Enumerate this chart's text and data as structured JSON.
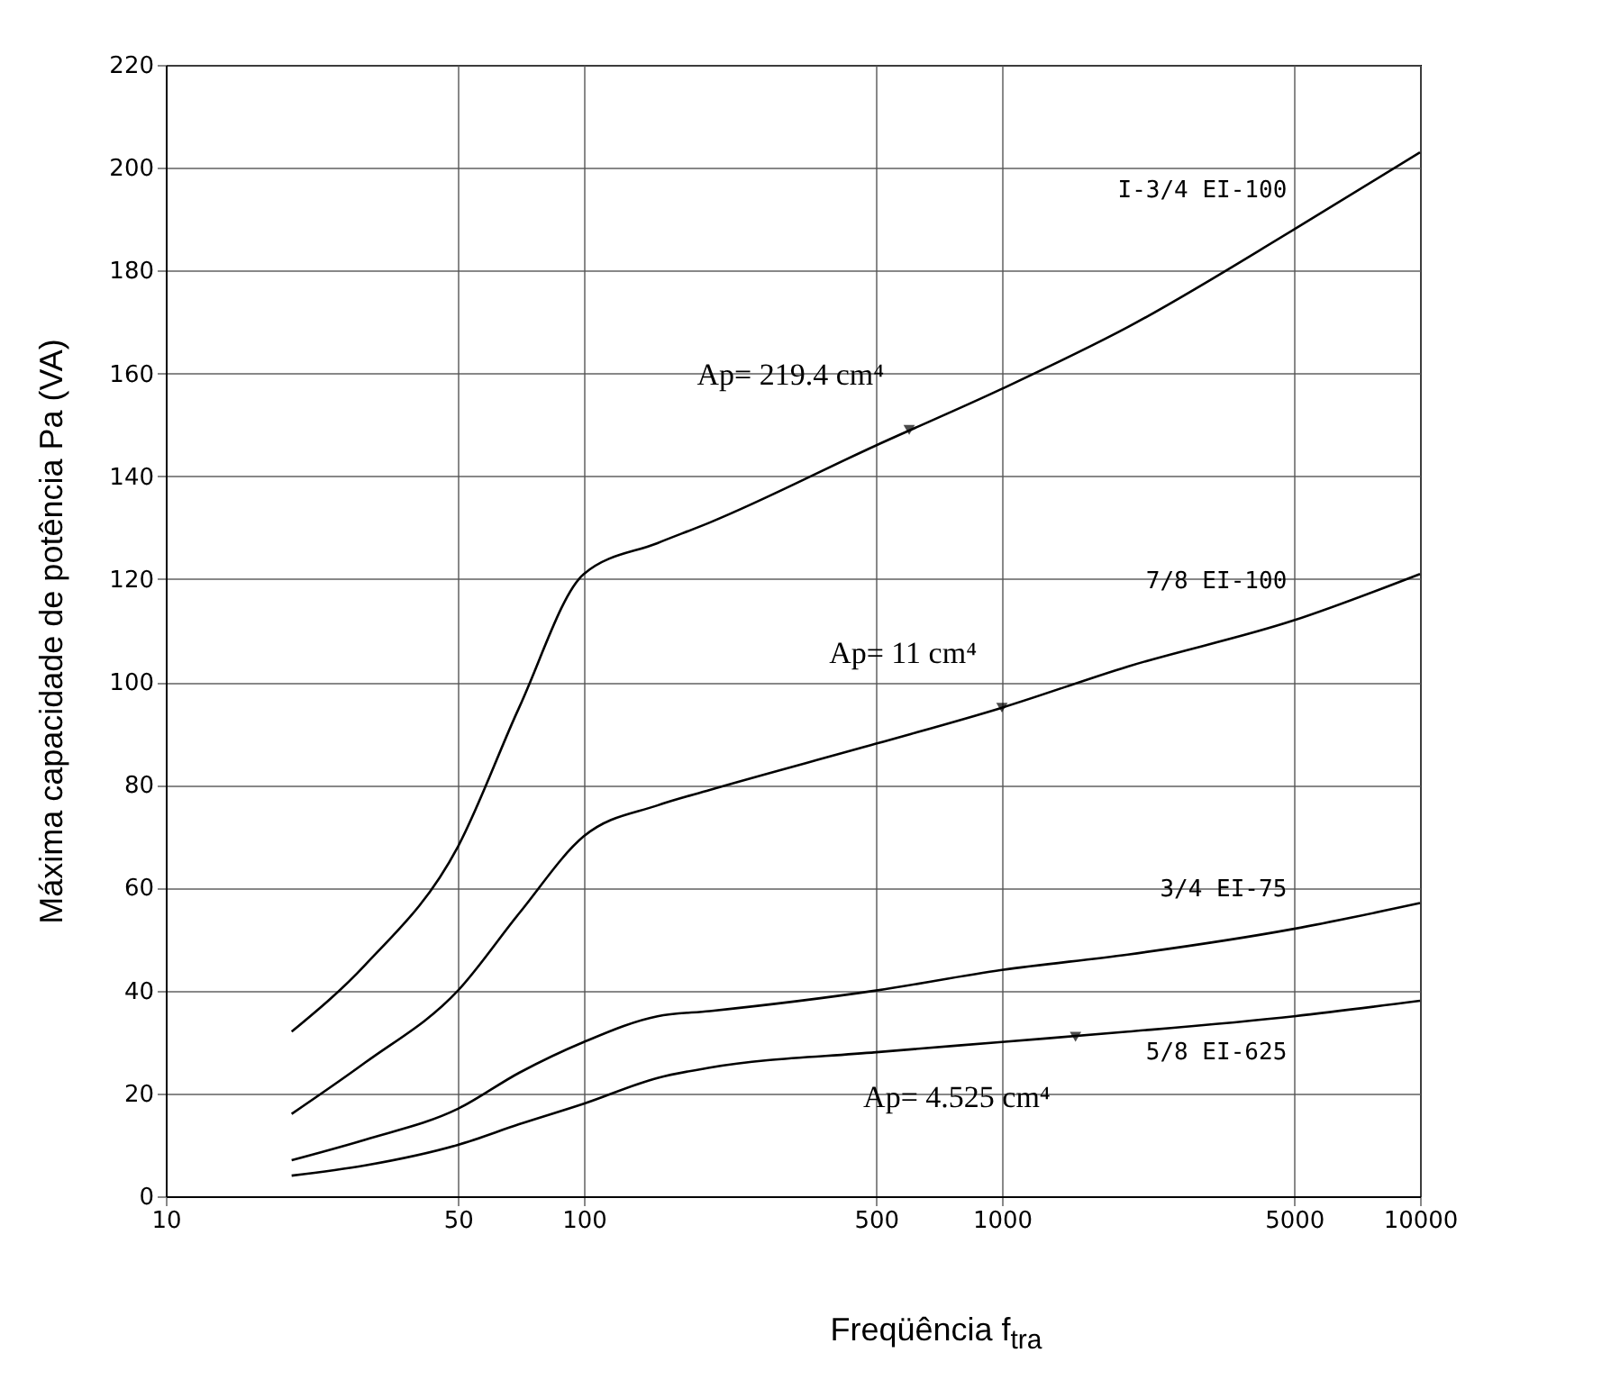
{
  "chart_data": {
    "type": "line",
    "xlabel": "Freqüência f$_{tra}$",
    "ylabel": "Máxima capacidade de potência Pa (VA)",
    "log": "x",
    "xlim": [
      10,
      10000
    ],
    "xticks": [
      10,
      50,
      100,
      500,
      1000,
      5000,
      10000
    ],
    "ylim": [
      0,
      220
    ],
    "yticks": [
      0,
      20,
      40,
      60,
      80,
      100,
      120,
      140,
      160,
      180,
      200,
      220
    ],
    "grid": true,
    "legend": false,
    "marker": "none",
    "line_style": "solid",
    "x": [
      20,
      30,
      50,
      70,
      100,
      150,
      200,
      500,
      1000,
      2000,
      5000,
      10000
    ],
    "series": [
      {
        "name": "I-3/4  EI-100",
        "color": "#000000",
        "values": [
          32,
          45,
          68,
          95,
          121,
          127,
          131,
          146,
          157,
          169,
          188,
          203
        ]
      },
      {
        "name": "7/8  EI-100",
        "color": "#000000",
        "values": [
          16,
          26,
          40,
          55,
          70,
          76,
          79,
          88,
          95,
          103,
          112,
          121
        ]
      },
      {
        "name": "3/4  EI-75",
        "color": "#000000",
        "values": [
          7,
          11,
          17,
          24,
          30,
          35,
          36,
          40,
          44,
          47,
          52,
          57
        ]
      },
      {
        "name": "5/8  EI-625",
        "color": "#000000",
        "values": [
          4,
          6,
          10,
          14,
          18,
          23,
          25,
          28,
          30,
          32,
          35,
          38
        ]
      }
    ],
    "annotations": [
      {
        "text": "Ap= 219.4 cm⁴",
        "x": 600,
        "y": 149
      },
      {
        "text": "Ap= 11 cm⁴",
        "x": 1000,
        "y": 95
      },
      {
        "text": "Ap= 4.525 cm⁴",
        "x": 1500,
        "y": 31
      }
    ]
  }
}
